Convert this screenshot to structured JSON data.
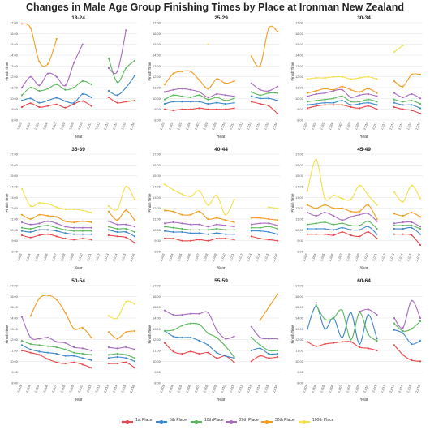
{
  "title": "Changes in Male Age Group Finishing Times by Place at Ironman New Zealand",
  "chart_data": {
    "type": "line",
    "xlabel": "Year",
    "ylabel": "Finish Time",
    "x": [
      "2,003",
      "2,004",
      "2,005",
      "2,006",
      "2,007",
      "2,008",
      "2,009",
      "2,010",
      "2,011",
      "2,012",
      "2,013",
      "2,014",
      "2,015",
      "2,016"
    ],
    "y_ticks": [
      "8:00",
      "9:00",
      "10:00",
      "11:00",
      "12:00",
      "13:00",
      "14:00",
      "15:00",
      "16:00",
      "17:00"
    ],
    "ylim": [
      8,
      17
    ],
    "grid": true,
    "legend_position": "bottom",
    "series_names": [
      "1st Place",
      "5th Place",
      "10th Place",
      "20th Place",
      "50th Place",
      "100th Place"
    ],
    "colors": [
      "#e8474c",
      "#3c87c9",
      "#5cb85c",
      "#a66bbe",
      "#f39c1f",
      "#f4e04d"
    ],
    "panels": [
      {
        "title": "18-24",
        "series": [
          [
            9.2,
            9.55,
            9.2,
            9.3,
            9.45,
            9.15,
            9.5,
            9.75,
            9.3,
            null,
            10.1,
            9.6,
            9.7,
            9.8
          ],
          [
            9.8,
            10.0,
            9.6,
            9.8,
            10.05,
            9.75,
            9.6,
            10.4,
            10.1,
            null,
            10.7,
            10.3,
            11.0,
            12.1
          ],
          [
            10.3,
            11.0,
            10.7,
            10.9,
            11.3,
            10.8,
            11.0,
            11.6,
            11.3,
            null,
            13.7,
            11.5,
            12.8,
            13.5
          ],
          [
            11.0,
            12.0,
            11.2,
            12.3,
            12.0,
            11.2,
            13.3,
            15.0,
            null,
            null,
            12.8,
            12.5,
            16.3,
            null
          ],
          [
            16.9,
            16.5,
            13.4,
            13.2,
            15.5,
            null,
            null,
            null,
            null,
            null,
            null,
            null,
            null,
            null
          ],
          [
            null,
            null,
            null,
            null,
            null,
            null,
            null,
            null,
            null,
            null,
            null,
            null,
            null,
            null
          ]
        ]
      },
      {
        "title": "25-29",
        "series": [
          [
            9.0,
            8.9,
            9.0,
            9.0,
            9.1,
            9.0,
            9.0,
            9.0,
            9.1,
            null,
            9.7,
            9.5,
            9.3,
            8.6
          ],
          [
            9.5,
            9.7,
            9.7,
            9.7,
            9.7,
            9.5,
            9.6,
            9.5,
            9.6,
            null,
            10.2,
            10.0,
            10.0,
            9.8
          ],
          [
            9.9,
            10.3,
            10.2,
            10.1,
            10.3,
            9.9,
            10.1,
            9.8,
            10.0,
            null,
            10.6,
            10.3,
            10.5,
            10.5
          ],
          [
            10.6,
            10.8,
            10.9,
            10.8,
            10.6,
            10.1,
            10.4,
            10.3,
            10.2,
            null,
            11.4,
            10.8,
            10.7,
            11.1
          ],
          [
            11.3,
            12.3,
            12.5,
            12.5,
            11.7,
            10.9,
            11.8,
            11.4,
            11.6,
            null,
            13.9,
            13.0,
            16.5,
            16.2
          ],
          [
            null,
            null,
            null,
            null,
            null,
            15.0,
            null,
            null,
            null,
            null,
            null,
            null,
            null,
            null
          ]
        ]
      },
      {
        "title": "30-34",
        "series": [
          [
            9.1,
            9.3,
            9.4,
            9.4,
            9.4,
            9.2,
            9.1,
            9.3,
            9.0,
            null,
            9.2,
            9.0,
            8.9,
            8.6
          ],
          [
            9.4,
            9.5,
            9.6,
            9.6,
            9.8,
            9.4,
            9.5,
            9.6,
            9.4,
            null,
            9.6,
            9.4,
            9.4,
            9.1
          ],
          [
            9.7,
            9.8,
            9.9,
            10.0,
            10.2,
            9.7,
            9.7,
            9.9,
            9.7,
            null,
            9.9,
            9.7,
            9.8,
            9.5
          ],
          [
            10.2,
            10.4,
            10.5,
            10.7,
            10.8,
            10.1,
            10.3,
            10.4,
            10.2,
            null,
            10.5,
            10.1,
            10.4,
            10.0
          ],
          [
            10.5,
            10.7,
            10.9,
            10.8,
            11.1,
            10.8,
            10.6,
            10.9,
            10.5,
            null,
            11.6,
            11.1,
            12.2,
            12.2
          ],
          [
            11.8,
            11.9,
            11.9,
            12.0,
            12.0,
            11.8,
            11.9,
            12.0,
            11.8,
            null,
            14.3,
            14.9,
            null,
            null
          ]
        ]
      },
      {
        "title": "35-39",
        "series": [
          [
            9.5,
            9.3,
            9.5,
            9.6,
            9.4,
            9.2,
            9.1,
            9.2,
            9.1,
            null,
            9.5,
            9.4,
            9.3,
            8.8
          ],
          [
            9.9,
            9.8,
            10.0,
            10.0,
            9.9,
            9.7,
            9.6,
            9.6,
            9.6,
            null,
            10.0,
            9.8,
            9.8,
            9.4
          ],
          [
            10.2,
            10.1,
            10.3,
            10.4,
            10.2,
            10.0,
            9.9,
            9.9,
            9.9,
            null,
            10.3,
            10.1,
            10.1,
            9.8
          ],
          [
            10.7,
            10.5,
            10.6,
            10.8,
            10.6,
            10.3,
            10.2,
            10.2,
            10.2,
            null,
            10.8,
            10.5,
            10.5,
            10.3
          ],
          [
            11.4,
            11.0,
            11.4,
            11.3,
            11.2,
            10.8,
            10.7,
            10.8,
            10.7,
            null,
            11.7,
            10.9,
            11.8,
            10.9
          ],
          [
            13.8,
            12.2,
            12.5,
            12.4,
            12.1,
            11.9,
            11.9,
            11.8,
            11.6,
            null,
            12.2,
            11.9,
            14.0,
            12.8
          ]
        ]
      },
      {
        "title": "40-44",
        "series": [
          [
            9.2,
            9.2,
            9.0,
            9.0,
            9.1,
            9.0,
            9.2,
            9.2,
            9.1,
            null,
            9.4,
            9.2,
            9.1,
            9.0
          ],
          [
            9.9,
            9.8,
            9.8,
            9.7,
            9.7,
            9.6,
            9.7,
            9.6,
            9.6,
            null,
            9.9,
            9.9,
            9.8,
            9.6
          ],
          [
            10.3,
            10.2,
            10.1,
            10.0,
            10.0,
            10.0,
            10.1,
            10.0,
            10.0,
            null,
            10.2,
            10.2,
            10.3,
            10.1
          ],
          [
            10.6,
            10.7,
            10.6,
            10.5,
            10.5,
            10.3,
            10.5,
            10.4,
            10.3,
            null,
            10.5,
            10.6,
            10.6,
            10.4
          ],
          [
            11.8,
            11.7,
            11.4,
            11.4,
            11.7,
            11.0,
            11.1,
            10.9,
            10.7,
            null,
            11.1,
            11.1,
            11.0,
            10.9
          ],
          [
            14.2,
            13.7,
            13.3,
            13.1,
            13.6,
            12.3,
            13.2,
            11.4,
            12.8,
            null,
            null,
            null,
            12.1,
            12.0
          ]
        ]
      },
      {
        "title": "45-49",
        "series": [
          [
            9.6,
            9.6,
            9.6,
            9.5,
            9.8,
            9.5,
            9.4,
            9.8,
            9.2,
            null,
            9.6,
            9.6,
            9.5,
            8.6
          ],
          [
            10.1,
            10.1,
            10.1,
            10.0,
            10.2,
            10.0,
            10.0,
            10.3,
            9.6,
            null,
            10.1,
            10.1,
            10.2,
            9.6
          ],
          [
            10.5,
            10.6,
            10.7,
            10.5,
            10.6,
            10.4,
            10.4,
            10.8,
            10.1,
            null,
            10.4,
            10.4,
            10.4,
            10.1
          ],
          [
            11.6,
            11.3,
            11.6,
            11.3,
            10.9,
            11.2,
            11.4,
            11.5,
            10.8,
            null,
            10.6,
            10.7,
            10.7,
            10.3
          ],
          [
            12.3,
            12.0,
            12.3,
            12.0,
            12.0,
            11.7,
            11.7,
            12.3,
            11.0,
            null,
            11.5,
            11.3,
            11.6,
            11.2
          ],
          [
            13.6,
            16.5,
            12.9,
            13.2,
            12.9,
            12.8,
            14.1,
            13.2,
            12.3,
            null,
            13.5,
            12.6,
            14.1,
            12.9
          ]
        ]
      },
      {
        "title": "50-54",
        "series": [
          [
            11.0,
            10.8,
            10.6,
            10.2,
            9.9,
            9.8,
            9.9,
            9.7,
            9.4,
            null,
            9.8,
            9.8,
            9.9,
            9.4
          ],
          [
            11.5,
            11.1,
            10.9,
            10.8,
            10.7,
            10.5,
            10.5,
            10.3,
            10.1,
            null,
            10.3,
            10.4,
            10.3,
            10.0
          ],
          [
            11.9,
            11.6,
            11.5,
            11.4,
            11.3,
            11.1,
            10.8,
            10.7,
            10.6,
            null,
            10.6,
            10.7,
            10.6,
            10.3
          ],
          [
            14.1,
            12.2,
            12.1,
            12.2,
            11.8,
            11.7,
            11.3,
            11.2,
            11.0,
            null,
            11.3,
            11.2,
            11.3,
            11.1
          ],
          [
            null,
            14.2,
            15.8,
            16.1,
            15.7,
            14.5,
            13.0,
            13.1,
            12.2,
            null,
            12.7,
            12.1,
            12.7,
            12.8
          ],
          [
            null,
            null,
            null,
            null,
            null,
            null,
            null,
            null,
            null,
            null,
            14.2,
            14.0,
            15.5,
            15.3
          ]
        ]
      },
      {
        "title": "55-59",
        "series": [
          [
            11.7,
            10.9,
            10.7,
            10.9,
            10.7,
            10.8,
            10.3,
            10.5,
            9.9,
            null,
            10.0,
            10.5,
            10.3,
            10.4
          ],
          [
            12.8,
            12.3,
            12.2,
            12.2,
            11.9,
            11.5,
            10.8,
            10.5,
            10.3,
            null,
            11.0,
            11.2,
            10.7,
            10.7
          ],
          [
            12.8,
            12.9,
            13.3,
            13.5,
            13.4,
            12.6,
            12.2,
            11.4,
            10.4,
            null,
            12.2,
            11.5,
            11.0,
            11.0
          ],
          [
            14.7,
            14.3,
            14.3,
            14.4,
            14.4,
            14.5,
            12.9,
            12.1,
            12.3,
            null,
            13.2,
            12.2,
            12.1,
            12.1
          ],
          [
            null,
            null,
            null,
            null,
            null,
            null,
            null,
            null,
            null,
            null,
            null,
            13.8,
            15.0,
            16.2
          ],
          [
            null,
            null,
            null,
            null,
            null,
            null,
            null,
            null,
            null,
            null,
            null,
            null,
            null,
            null
          ]
        ]
      },
      {
        "title": "60-64",
        "series": [
          [
            11.8,
            11.4,
            11.6,
            11.7,
            11.8,
            11.8,
            11.3,
            11.2,
            11.0,
            null,
            11.5,
            10.6,
            10.1,
            10.0
          ],
          [
            13.0,
            15.1,
            13.0,
            14.0,
            12.2,
            14.5,
            11.6,
            14.3,
            12.1,
            null,
            12.9,
            12.6,
            11.6,
            11.9
          ],
          [
            null,
            15.2,
            13.9,
            14.0,
            14.7,
            12.0,
            14.5,
            12.5,
            11.9,
            null,
            13.5,
            12.8,
            13.0,
            13.7
          ],
          [
            null,
            15.4,
            null,
            null,
            null,
            null,
            14.6,
            14.8,
            14.3,
            null,
            14.0,
            13.1,
            15.6,
            14.0
          ],
          [
            null,
            null,
            null,
            null,
            null,
            null,
            null,
            null,
            null,
            null,
            null,
            null,
            null,
            null
          ],
          [
            null,
            null,
            null,
            null,
            null,
            null,
            null,
            null,
            null,
            null,
            null,
            null,
            null,
            null
          ]
        ]
      }
    ]
  }
}
